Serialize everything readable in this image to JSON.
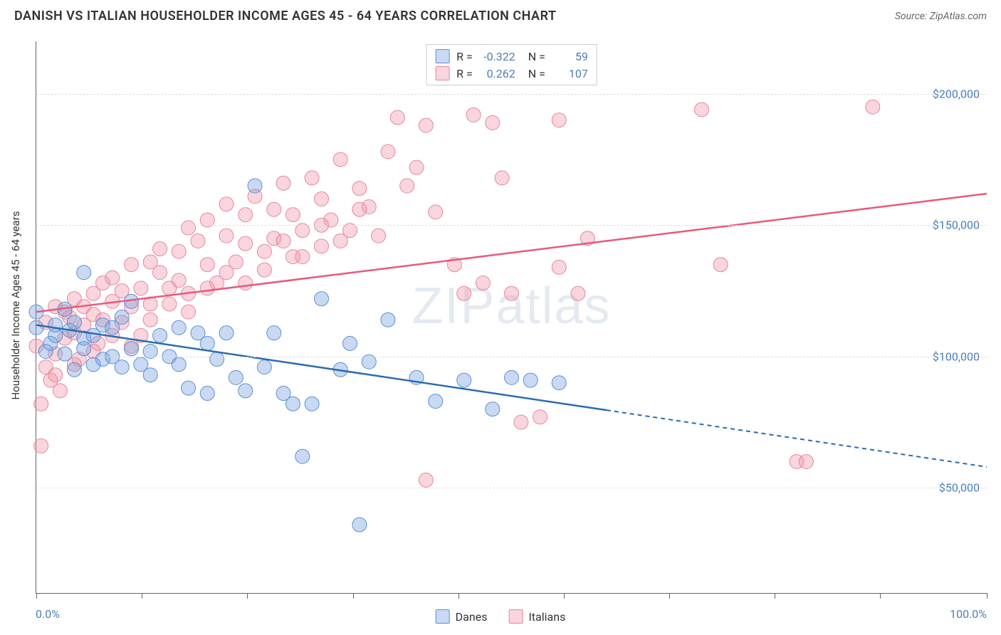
{
  "header": {
    "title": "DANISH VS ITALIAN HOUSEHOLDER INCOME AGES 45 - 64 YEARS CORRELATION CHART",
    "source": "Source: ZipAtlas.com"
  },
  "chart": {
    "type": "scatter",
    "y_axis_label": "Householder Income Ages 45 - 64 years",
    "x_min_label": "0.0%",
    "x_max_label": "100.0%",
    "xlim": [
      0,
      100
    ],
    "ylim": [
      10000,
      220000
    ],
    "y_ticks": [
      {
        "value": 50000,
        "label": "$50,000"
      },
      {
        "value": 100000,
        "label": "$100,000"
      },
      {
        "value": 150000,
        "label": "$150,000"
      },
      {
        "value": 200000,
        "label": "$200,000"
      }
    ],
    "x_tick_positions": [
      0,
      11.1,
      22.2,
      33.3,
      44.4,
      55.5,
      66.6,
      77.7,
      88.8,
      100
    ],
    "background_color": "#ffffff",
    "grid_color": "#dddddd",
    "axis_color": "#666666",
    "tick_label_color": "#4a7ebb",
    "marker_radius": 10,
    "marker_opacity": 0.5,
    "watermark_text": "ZIPatlas"
  },
  "series": {
    "danes": {
      "label": "Danes",
      "color_fill": "rgba(120,160,220,0.4)",
      "color_stroke": "#5b8fd6",
      "line_color": "#2b6cb0",
      "r_value": "-0.322",
      "n_value": "59",
      "trend": {
        "x1": 0,
        "y1": 112000,
        "x2": 100,
        "y2": 58000,
        "solid_until_x": 60
      },
      "points": [
        [
          0,
          117000
        ],
        [
          0,
          111000
        ],
        [
          1,
          102000
        ],
        [
          1.5,
          105000
        ],
        [
          2,
          112000
        ],
        [
          2,
          108000
        ],
        [
          3,
          101000
        ],
        [
          3,
          118000
        ],
        [
          3.5,
          110000
        ],
        [
          4,
          113000
        ],
        [
          4,
          95000
        ],
        [
          5,
          107000
        ],
        [
          5,
          103000
        ],
        [
          5,
          132000
        ],
        [
          6,
          97000
        ],
        [
          6,
          108000
        ],
        [
          7,
          112000
        ],
        [
          7,
          99000
        ],
        [
          8,
          100000
        ],
        [
          8,
          111000
        ],
        [
          9,
          115000
        ],
        [
          9,
          96000
        ],
        [
          10,
          121000
        ],
        [
          10,
          103000
        ],
        [
          11,
          97000
        ],
        [
          12,
          102000
        ],
        [
          12,
          93000
        ],
        [
          13,
          108000
        ],
        [
          14,
          100000
        ],
        [
          15,
          111000
        ],
        [
          15,
          97000
        ],
        [
          16,
          88000
        ],
        [
          17,
          109000
        ],
        [
          18,
          105000
        ],
        [
          18,
          86000
        ],
        [
          19,
          99000
        ],
        [
          20,
          109000
        ],
        [
          21,
          92000
        ],
        [
          22,
          87000
        ],
        [
          23,
          165000
        ],
        [
          24,
          96000
        ],
        [
          25,
          109000
        ],
        [
          26,
          86000
        ],
        [
          27,
          82000
        ],
        [
          28,
          62000
        ],
        [
          29,
          82000
        ],
        [
          30,
          122000
        ],
        [
          32,
          95000
        ],
        [
          33,
          105000
        ],
        [
          34,
          36000
        ],
        [
          35,
          98000
        ],
        [
          37,
          114000
        ],
        [
          40,
          92000
        ],
        [
          42,
          83000
        ],
        [
          45,
          91000
        ],
        [
          48,
          80000
        ],
        [
          50,
          92000
        ],
        [
          52,
          91000
        ],
        [
          55,
          90000
        ]
      ]
    },
    "italians": {
      "label": "Italians",
      "color_fill": "rgba(240,150,170,0.4)",
      "color_stroke": "#e6879f",
      "line_color": "#e65a7a",
      "r_value": "0.262",
      "n_value": "107",
      "trend": {
        "x1": 0,
        "y1": 117000,
        "x2": 100,
        "y2": 162000,
        "solid_until_x": 100
      },
      "points": [
        [
          0,
          104000
        ],
        [
          0.5,
          82000
        ],
        [
          0.5,
          66000
        ],
        [
          1,
          96000
        ],
        [
          1,
          113000
        ],
        [
          1.5,
          91000
        ],
        [
          2,
          119000
        ],
        [
          2,
          101000
        ],
        [
          2.5,
          87000
        ],
        [
          3,
          117000
        ],
        [
          3,
          107000
        ],
        [
          3.5,
          115000
        ],
        [
          4,
          122000
        ],
        [
          4,
          109000
        ],
        [
          4.5,
          99000
        ],
        [
          5,
          119000
        ],
        [
          5,
          112000
        ],
        [
          6,
          116000
        ],
        [
          6,
          124000
        ],
        [
          6.5,
          105000
        ],
        [
          7,
          128000
        ],
        [
          7,
          114000
        ],
        [
          8,
          121000
        ],
        [
          8,
          130000
        ],
        [
          9,
          113000
        ],
        [
          9,
          125000
        ],
        [
          10,
          119000
        ],
        [
          10,
          135000
        ],
        [
          11,
          126000
        ],
        [
          11,
          108000
        ],
        [
          12,
          136000
        ],
        [
          12,
          120000
        ],
        [
          13,
          132000
        ],
        [
          13,
          141000
        ],
        [
          14,
          126000
        ],
        [
          15,
          140000
        ],
        [
          15,
          129000
        ],
        [
          16,
          149000
        ],
        [
          16,
          124000
        ],
        [
          17,
          144000
        ],
        [
          18,
          135000
        ],
        [
          18,
          152000
        ],
        [
          19,
          128000
        ],
        [
          20,
          146000
        ],
        [
          20,
          158000
        ],
        [
          21,
          136000
        ],
        [
          22,
          154000
        ],
        [
          22,
          143000
        ],
        [
          23,
          161000
        ],
        [
          24,
          133000
        ],
        [
          25,
          156000
        ],
        [
          25,
          145000
        ],
        [
          26,
          166000
        ],
        [
          27,
          138000
        ],
        [
          27,
          154000
        ],
        [
          28,
          148000
        ],
        [
          29,
          168000
        ],
        [
          30,
          142000
        ],
        [
          30,
          160000
        ],
        [
          31,
          152000
        ],
        [
          32,
          175000
        ],
        [
          33,
          148000
        ],
        [
          34,
          164000
        ],
        [
          35,
          157000
        ],
        [
          36,
          146000
        ],
        [
          37,
          178000
        ],
        [
          38,
          191000
        ],
        [
          39,
          165000
        ],
        [
          40,
          172000
        ],
        [
          41,
          188000
        ],
        [
          42,
          155000
        ],
        [
          44,
          135000
        ],
        [
          45,
          124000
        ],
        [
          46,
          192000
        ],
        [
          47,
          128000
        ],
        [
          48,
          189000
        ],
        [
          49,
          168000
        ],
        [
          50,
          124000
        ],
        [
          51,
          75000
        ],
        [
          53,
          77000
        ],
        [
          55,
          134000
        ],
        [
          55,
          190000
        ],
        [
          57,
          124000
        ],
        [
          58,
          145000
        ],
        [
          41,
          53000
        ],
        [
          70,
          194000
        ],
        [
          72,
          135000
        ],
        [
          80,
          60000
        ],
        [
          81,
          60000
        ],
        [
          88,
          195000
        ],
        [
          2,
          93000
        ],
        [
          4,
          97000
        ],
        [
          6,
          102000
        ],
        [
          8,
          108000
        ],
        [
          10,
          104000
        ],
        [
          12,
          114000
        ],
        [
          14,
          120000
        ],
        [
          16,
          117000
        ],
        [
          18,
          126000
        ],
        [
          20,
          132000
        ],
        [
          22,
          128000
        ],
        [
          24,
          140000
        ],
        [
          26,
          144000
        ],
        [
          28,
          138000
        ],
        [
          30,
          150000
        ],
        [
          32,
          144000
        ],
        [
          34,
          156000
        ]
      ]
    }
  },
  "bottom_legend": {
    "item1_label": "Danes",
    "item2_label": "Italians"
  }
}
